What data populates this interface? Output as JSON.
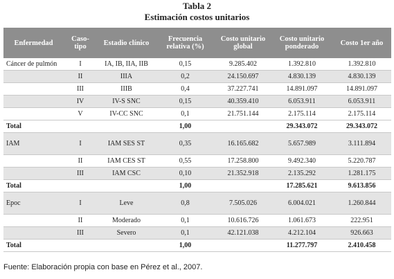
{
  "header": {
    "title": "Tabla 2",
    "subtitle": "Estimación costos unitarios"
  },
  "table": {
    "columns": [
      "Enfermedad",
      "Caso-tipo",
      "Estadio clínico",
      "Frecuencia relativa (%)",
      "Costo unitario global",
      "Costo unitario ponderado",
      "Costo 1er año"
    ],
    "groups": [
      {
        "disease": "Cáncer de pulmón",
        "rows": [
          [
            "I",
            "IA, IB, IIA, IIB",
            "0,15",
            "9.285.402",
            "1.392.810",
            "1.392.810"
          ],
          [
            "II",
            "IIIA",
            "0,2",
            "24.150.697",
            "4.830.139",
            "4.830.139"
          ],
          [
            "III",
            "IIIB",
            "0,4",
            "37.227.741",
            "14.891.097",
            "14.891.097"
          ],
          [
            "IV",
            "IV-S SNC",
            "0,15",
            "40.359.410",
            "6.053.911",
            "6.053.911"
          ],
          [
            "V",
            "IV-CC SNC",
            "0,1",
            "21.751.144",
            "2.175.114",
            "2.175.114"
          ]
        ],
        "total": {
          "label": "Total",
          "frecuencia": "1,00",
          "ponderado": "29.343.072",
          "primer_anio": "29.343.072"
        }
      },
      {
        "disease": "IAM",
        "rows": [
          [
            "I",
            "IAM SES ST",
            "0,35",
            "16.165.682",
            "5.657.989",
            "3.111.894"
          ],
          [
            "II",
            "IAM CES ST",
            "0,55",
            "17.258.800",
            "9.492.340",
            "5.220.787"
          ],
          [
            "III",
            "IAM CSC",
            "0,10",
            "21.352.918",
            "2.135.292",
            "1.281.175"
          ]
        ],
        "total": {
          "label": "Total",
          "frecuencia": "1,00",
          "ponderado": "17.285.621",
          "primer_anio": "9.613.856"
        }
      },
      {
        "disease": "Epoc",
        "rows": [
          [
            "I",
            "Leve",
            "0,8",
            "7.505.026",
            "6.004.021",
            "1.260.844"
          ],
          [
            "II",
            "Moderado",
            "0,1",
            "10.616.726",
            "1.061.673",
            "222.951"
          ],
          [
            "III",
            "Severo",
            "0,1",
            "42.121.038",
            "4.212.104",
            "926.663"
          ]
        ],
        "total": {
          "label": "Total",
          "frecuencia": "1,00",
          "ponderado": "11.277.797",
          "primer_anio": "2.410.458"
        }
      }
    ]
  },
  "footer": {
    "source": "Fuente: Elaboración propia con base en Pérez et al., 2007."
  }
}
